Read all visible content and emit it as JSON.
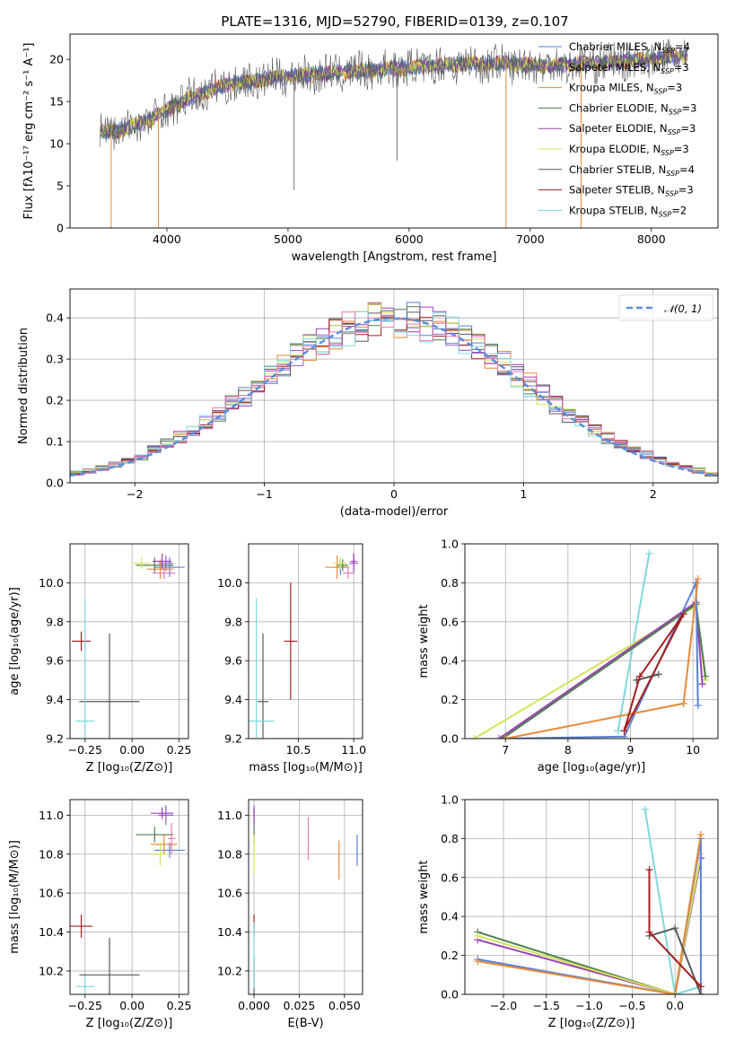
{
  "title": "PLATE=1316, MJD=52790, FIBERID=0139, z=0.107",
  "colors": {
    "Chabrier MILES": "#5b82d3",
    "Salpeter MILES": "#8c63c9",
    "Kroupa MILES": "#e68a3a",
    "Chabrier ELODIE": "#4f7f4f",
    "Salpeter ELODIE": "#9a40b8",
    "Kroupa ELODIE": "#d4e35a",
    "Chabrier STELIB": "#5a5a5a",
    "Salpeter STELIB": "#a51f1f",
    "Kroupa STELIB": "#7fd8e0",
    "pink": "#e77ab3"
  },
  "chart_data": [
    {
      "type": "line",
      "panel": "spectrum",
      "title": "PLATE=1316, MJD=52790, FIBERID=0139, z=0.107",
      "xlabel": "wavelength [Angstrom, rest frame]",
      "ylabel": "Flux [fλ10⁻¹⁷ erg cm⁻² s⁻¹ A⁻¹]",
      "xlim": [
        3200,
        8550
      ],
      "ylim": [
        0,
        23
      ],
      "xticks": [
        4000,
        5000,
        6000,
        7000,
        8000
      ],
      "yticks": [
        0,
        5,
        10,
        15,
        20
      ],
      "legend_position": "right",
      "grid": false,
      "continuum": {
        "x": [
          3450,
          3600,
          3800,
          4000,
          4200,
          4500,
          5000,
          5500,
          6000,
          6500,
          6800,
          7000,
          7500,
          8000,
          8300
        ],
        "y": [
          11.5,
          11.5,
          12.5,
          14,
          15.5,
          17,
          18,
          18.5,
          19,
          19.5,
          19.5,
          19.3,
          19.5,
          20,
          20.5
        ]
      },
      "series": [
        {
          "name": "Chabrier MILES",
          "nssp": "4"
        },
        {
          "name": "Salpeter MILES",
          "nssp": "3"
        },
        {
          "name": "Kroupa MILES",
          "nssp": "3"
        },
        {
          "name": "Chabrier ELODIE",
          "nssp": "3"
        },
        {
          "name": "Salpeter ELODIE",
          "nssp": "3"
        },
        {
          "name": "Kroupa ELODIE",
          "nssp": "3"
        },
        {
          "name": "Chabrier STELIB",
          "nssp": "4"
        },
        {
          "name": "Salpeter STELIB",
          "nssp": "3"
        },
        {
          "name": "Kroupa STELIB",
          "nssp": "2"
        }
      ]
    },
    {
      "type": "area",
      "panel": "residuals",
      "xlabel": "(data-model)/error",
      "ylabel": "Normed distribution",
      "xlim": [
        -2.5,
        2.5
      ],
      "ylim": [
        0,
        0.47
      ],
      "xticks": [
        -2,
        -1,
        0,
        1,
        2
      ],
      "yticks": [
        0.0,
        0.1,
        0.2,
        0.3,
        0.4
      ],
      "grid": true,
      "legend_position": "top-right",
      "reference_curve": "𝒩(0, 1)",
      "bin_width": 0.1
    },
    {
      "type": "scatter",
      "panel": "Z vs age",
      "xlabel": "Z [log₁₀(Z/Z⊙)]",
      "ylabel": "age  [log₁₀(age/yr)]",
      "xlim": [
        -0.33,
        0.3
      ],
      "ylim": [
        9.2,
        10.2
      ],
      "xticks": [
        -0.25,
        0.0,
        0.25
      ],
      "yticks": [
        9.2,
        9.4,
        9.6,
        9.8,
        10.0
      ],
      "grid": true,
      "points": [
        {
          "name": "Chabrier MILES",
          "x": 0.2,
          "y": 10.08,
          "xerr": 0.08,
          "yerr": 0.05
        },
        {
          "name": "Salpeter MILES",
          "x": 0.18,
          "y": 10.1,
          "xerr": 0.04,
          "yerr": 0.04
        },
        {
          "name": "Kroupa MILES",
          "x": 0.15,
          "y": 10.07,
          "xerr": 0.07,
          "yerr": 0.05
        },
        {
          "name": "Chabrier ELODIE",
          "x": 0.12,
          "y": 10.09,
          "xerr": 0.1,
          "yerr": 0.04
        },
        {
          "name": "Salpeter ELODIE",
          "x": 0.16,
          "y": 10.11,
          "xerr": 0.05,
          "yerr": 0.04
        },
        {
          "name": "Kroupa ELODIE",
          "x": 0.05,
          "y": 10.1,
          "xerr": 0.05,
          "yerr": 0.03
        },
        {
          "name": "Chabrier STELIB",
          "x": -0.12,
          "y": 9.39,
          "xerr": 0.16,
          "yerr": 0.35
        },
        {
          "name": "Salpeter STELIB",
          "x": -0.27,
          "y": 9.7,
          "xerr": 0.05,
          "yerr": 0.05
        },
        {
          "name": "Kroupa STELIB",
          "x": -0.25,
          "y": 9.29,
          "xerr": 0.05,
          "yerr": 0.63
        },
        {
          "name": "pink",
          "x": 0.17,
          "y": 10.05,
          "xerr": 0.06,
          "yerr": 0.03
        }
      ]
    },
    {
      "type": "scatter",
      "panel": "mass vs age",
      "xlabel": "mass [log₁₀(M/M⊙)]",
      "ylabel": "",
      "xlim": [
        10.05,
        11.08
      ],
      "ylim": [
        9.2,
        10.2
      ],
      "xticks": [
        10.5,
        11.0
      ],
      "yticks": [
        9.2,
        9.4,
        9.6,
        9.8,
        10.0
      ],
      "grid": true,
      "points": [
        {
          "name": "Chabrier MILES",
          "x": 10.88,
          "y": 10.08,
          "xerr": 0.06,
          "yerr": 0.04
        },
        {
          "name": "Salpeter MILES",
          "x": 11.0,
          "y": 10.1,
          "xerr": 0.04,
          "yerr": 0.05
        },
        {
          "name": "Kroupa MILES",
          "x": 10.85,
          "y": 10.08,
          "xerr": 0.11,
          "yerr": 0.06
        },
        {
          "name": "Chabrier ELODIE",
          "x": 10.9,
          "y": 10.09,
          "xerr": 0.05,
          "yerr": 0.03
        },
        {
          "name": "Salpeter ELODIE",
          "x": 11.0,
          "y": 10.11,
          "xerr": 0.03,
          "yerr": 0.04
        },
        {
          "name": "Kroupa ELODIE",
          "x": 10.88,
          "y": 10.1,
          "xerr": 0.06,
          "yerr": 0.03
        },
        {
          "name": "Chabrier STELIB",
          "x": 10.18,
          "y": 9.39,
          "xerr": 0.05,
          "yerr": 0.35
        },
        {
          "name": "Salpeter STELIB",
          "x": 10.43,
          "y": 9.7,
          "xerr": 0.06,
          "yerr": 0.3
        },
        {
          "name": "Kroupa STELIB",
          "x": 10.12,
          "y": 9.29,
          "xerr": 0.16,
          "yerr": 0.63
        },
        {
          "name": "pink",
          "x": 10.95,
          "y": 10.05,
          "xerr": 0.05,
          "yerr": 0.03
        }
      ]
    },
    {
      "type": "line",
      "panel": "age vs mass weight",
      "xlabel": "age  [log₁₀(age/yr)]",
      "ylabel": "mass weight",
      "xlim": [
        6.35,
        10.4
      ],
      "ylim": [
        0,
        1.0
      ],
      "xticks": [
        7,
        8,
        9,
        10
      ],
      "yticks": [
        0.0,
        0.2,
        0.4,
        0.6,
        0.8,
        1.0
      ],
      "grid": true,
      "series": [
        {
          "name": "Kroupa STELIB",
          "x": [
            8.8,
            9.3,
            8.8
          ],
          "y": [
            0.04,
            0.95,
            0.04
          ]
        },
        {
          "name": "Kroupa ELODIE",
          "x": [
            6.5,
            10.05,
            10.2,
            10.05
          ],
          "y": [
            0.0,
            0.68,
            0.3,
            0.68
          ]
        },
        {
          "name": "Salpeter ELODIE",
          "x": [
            6.9,
            10.05,
            10.15
          ],
          "y": [
            0.0,
            0.7,
            0.28
          ]
        },
        {
          "name": "Chabrier ELODIE",
          "x": [
            6.95,
            10.05,
            10.2
          ],
          "y": [
            0.0,
            0.69,
            0.32
          ]
        },
        {
          "name": "Chabrier MILES",
          "x": [
            7.0,
            8.9,
            10.05,
            10.08
          ],
          "y": [
            0.0,
            0.01,
            0.8,
            0.17
          ]
        },
        {
          "name": "Kroupa MILES",
          "x": [
            7.0,
            9.85,
            10.08,
            9.85
          ],
          "y": [
            0.0,
            0.18,
            0.82,
            0.18
          ]
        },
        {
          "name": "Chabrier STELIB",
          "x": [
            9.1,
            9.45,
            9.1
          ],
          "y": [
            0.3,
            0.33,
            0.3
          ]
        },
        {
          "name": "Salpeter STELIB",
          "x": [
            8.9,
            9.15,
            9.85,
            8.9
          ],
          "y": [
            0.04,
            0.32,
            0.64,
            0.04
          ]
        }
      ]
    },
    {
      "type": "scatter",
      "panel": "Z vs mass",
      "xlabel": "Z [log₁₀(Z/Z⊙)]",
      "ylabel": "mass [log₁₀(M/M⊙)]",
      "xlim": [
        -0.33,
        0.3
      ],
      "ylim": [
        10.08,
        11.08
      ],
      "xticks": [
        -0.25,
        0.0,
        0.25
      ],
      "yticks": [
        10.2,
        10.4,
        10.6,
        10.8,
        11.0
      ],
      "grid": true,
      "points": [
        {
          "name": "Chabrier MILES",
          "x": 0.2,
          "y": 10.82,
          "xerr": 0.08,
          "yerr": 0.04
        },
        {
          "name": "Salpeter MILES",
          "x": 0.18,
          "y": 11.0,
          "xerr": 0.04,
          "yerr": 0.05
        },
        {
          "name": "Kroupa MILES",
          "x": 0.17,
          "y": 10.85,
          "xerr": 0.07,
          "yerr": 0.05
        },
        {
          "name": "Chabrier ELODIE",
          "x": 0.12,
          "y": 10.9,
          "xerr": 0.1,
          "yerr": 0.04
        },
        {
          "name": "Salpeter ELODIE",
          "x": 0.16,
          "y": 11.01,
          "xerr": 0.06,
          "yerr": 0.03
        },
        {
          "name": "Kroupa ELODIE",
          "x": 0.15,
          "y": 10.8,
          "xerr": 0.05,
          "yerr": 0.06
        },
        {
          "name": "Chabrier STELIB",
          "x": -0.12,
          "y": 10.18,
          "xerr": 0.16,
          "yerr": 0.19
        },
        {
          "name": "Salpeter STELIB",
          "x": -0.27,
          "y": 10.43,
          "xerr": 0.06,
          "yerr": 0.06
        },
        {
          "name": "Kroupa STELIB",
          "x": -0.25,
          "y": 10.12,
          "xerr": 0.05,
          "yerr": 0.05
        },
        {
          "name": "pink",
          "x": 0.21,
          "y": 10.88,
          "xerr": 0.02,
          "yerr": 0.08
        }
      ]
    },
    {
      "type": "scatter",
      "panel": "E(B-V) vs mass",
      "xlabel": "E(B-V)",
      "ylabel": "",
      "xlim": [
        -0.003,
        0.06
      ],
      "ylim": [
        10.08,
        11.08
      ],
      "xticks": [
        0.0,
        0.025,
        0.05
      ],
      "yticks": [
        10.2,
        10.4,
        10.6,
        10.8,
        11.0
      ],
      "grid": true,
      "points": [
        {
          "name": "Chabrier MILES",
          "x": 0.057,
          "y": 10.82,
          "yerr": 0.08
        },
        {
          "name": "Salpeter MILES",
          "x": 0.0,
          "y": 11.0,
          "yerr": 0.05
        },
        {
          "name": "Kroupa MILES",
          "x": 0.047,
          "y": 10.77,
          "yerr": 0.1
        },
        {
          "name": "Chabrier ELODIE",
          "x": 0.0,
          "y": 10.9,
          "yerr": 0.05
        },
        {
          "name": "Salpeter ELODIE",
          "x": 0.0,
          "y": 11.0,
          "yerr": 0.04
        },
        {
          "name": "Kroupa ELODIE",
          "x": 0.0,
          "y": 10.8,
          "yerr": 0.1
        },
        {
          "name": "Chabrier STELIB",
          "x": 0.0,
          "y": 10.18,
          "yerr": 0.1
        },
        {
          "name": "Salpeter STELIB",
          "x": 0.0,
          "y": 10.43,
          "yerr": 0.06
        },
        {
          "name": "Kroupa STELIB",
          "x": 0.0,
          "y": 10.28,
          "yerr": 0.17
        },
        {
          "name": "pink",
          "x": 0.03,
          "y": 10.88,
          "yerr": 0.11
        }
      ]
    },
    {
      "type": "line",
      "panel": "Z vs mass weight",
      "xlabel": "Z [log₁₀(Z/Z⊙)]",
      "ylabel": "mass weight",
      "xlim": [
        -2.45,
        0.5
      ],
      "ylim": [
        0,
        1.0
      ],
      "xticks": [
        -2.0,
        -1.5,
        -1.0,
        -0.5,
        0.0
      ],
      "yticks": [
        0.0,
        0.2,
        0.4,
        0.6,
        0.8,
        1.0
      ],
      "grid": true,
      "series": [
        {
          "name": "Kroupa STELIB",
          "x": [
            -0.35,
            0.0,
            0.3
          ],
          "y": [
            0.95,
            0.0,
            0.04
          ]
        },
        {
          "name": "Chabrier ELODIE",
          "x": [
            -2.3,
            0.0,
            0.3
          ],
          "y": [
            0.32,
            0.0,
            0.7
          ]
        },
        {
          "name": "Salpeter ELODIE",
          "x": [
            -2.3,
            0.0,
            0.3
          ],
          "y": [
            0.28,
            0.0,
            0.7
          ]
        },
        {
          "name": "Kroupa ELODIE",
          "x": [
            -2.3,
            0.0,
            0.3
          ],
          "y": [
            0.3,
            0.0,
            0.72
          ]
        },
        {
          "name": "Chabrier MILES",
          "x": [
            -2.3,
            0.0,
            0.3,
            0.3
          ],
          "y": [
            0.18,
            0.0,
            0.8,
            0.0
          ]
        },
        {
          "name": "Kroupa MILES",
          "x": [
            -2.3,
            0.0,
            0.3
          ],
          "y": [
            0.17,
            0.0,
            0.82
          ]
        },
        {
          "name": "Chabrier STELIB",
          "x": [
            -0.3,
            0.0,
            0.3
          ],
          "y": [
            0.3,
            0.34,
            0.0
          ]
        },
        {
          "name": "Salpeter STELIB",
          "x": [
            -0.3,
            -0.3,
            0.3
          ],
          "y": [
            0.64,
            0.32,
            0.04
          ]
        }
      ]
    }
  ]
}
